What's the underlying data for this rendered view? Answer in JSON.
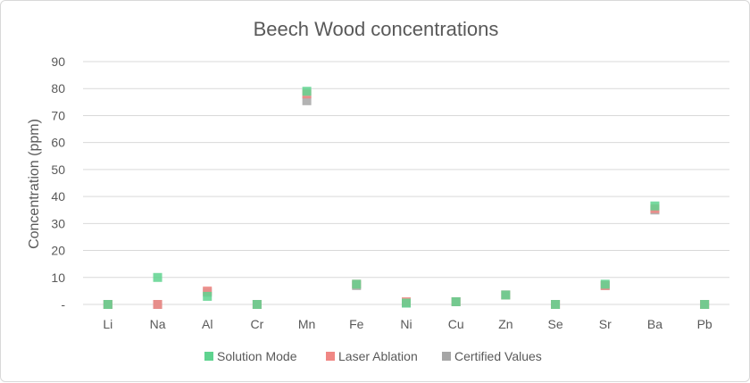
{
  "chart_data": {
    "type": "scatter",
    "title": "Beech Wood concentrations",
    "xlabel": "",
    "ylabel": "Concentration (ppm)",
    "categories": [
      "Li",
      "Na",
      "Al",
      "Cr",
      "Mn",
      "Fe",
      "Ni",
      "Cu",
      "Zn",
      "Se",
      "Sr",
      "Ba",
      "Pb"
    ],
    "ylim": [
      0,
      90
    ],
    "yticks": [
      0,
      10,
      20,
      30,
      40,
      50,
      60,
      70,
      80,
      90
    ],
    "ytick_labels": [
      "-",
      "10",
      "20",
      "30",
      "40",
      "50",
      "60",
      "70",
      "80",
      "90"
    ],
    "grid": true,
    "legend_position": "bottom",
    "series": [
      {
        "name": "Solution Mode",
        "color": "#5fd38f",
        "values": [
          0,
          10,
          3,
          0,
          79,
          7.5,
          0.5,
          1,
          3.5,
          0,
          7.5,
          36.5,
          0
        ]
      },
      {
        "name": "Laser Ablation",
        "color": "#f08784",
        "values": [
          0,
          0,
          5,
          0,
          78,
          7.5,
          1,
          1,
          3.5,
          0,
          7,
          35.5,
          0
        ]
      },
      {
        "name": "Certified Values",
        "color": "#a6a6a6",
        "values": [
          0,
          0,
          4.5,
          0,
          75.5,
          7,
          0.5,
          1,
          3.5,
          0,
          7,
          35,
          0
        ]
      }
    ]
  }
}
